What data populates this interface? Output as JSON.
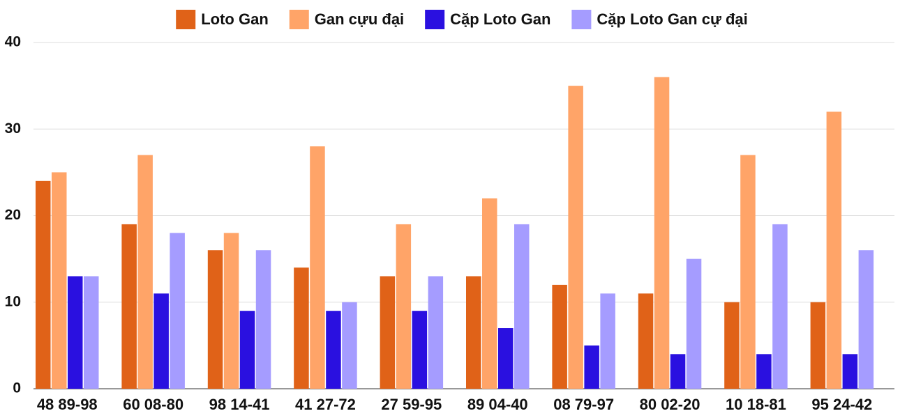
{
  "chart_data": {
    "type": "bar",
    "categories": [
      "48 89-98",
      "60 08-80",
      "98 14-41",
      "41 27-72",
      "27 59-95",
      "89 04-40",
      "08 79-97",
      "80 02-20",
      "10 18-81",
      "95 24-42"
    ],
    "series": [
      {
        "name": "Loto Gan",
        "color": "#e06218",
        "values": [
          24,
          19,
          16,
          14,
          13,
          13,
          12,
          11,
          10,
          10
        ]
      },
      {
        "name": "Gan cựu đại",
        "color": "#ffa468",
        "values": [
          25,
          27,
          18,
          28,
          19,
          22,
          35,
          36,
          27,
          32
        ]
      },
      {
        "name": "Cặp Loto Gan",
        "color": "#2a10e0",
        "values": [
          13,
          11,
          9,
          9,
          9,
          7,
          5,
          4,
          4,
          4
        ]
      },
      {
        "name": "Cặp Loto Gan cự đại",
        "color": "#a59cff",
        "values": [
          13,
          18,
          16,
          10,
          13,
          19,
          11,
          15,
          19,
          16
        ]
      }
    ],
    "ylim": [
      0,
      40
    ],
    "yticks": [
      0,
      10,
      20,
      30,
      40
    ],
    "grid": true,
    "legend": "top"
  }
}
